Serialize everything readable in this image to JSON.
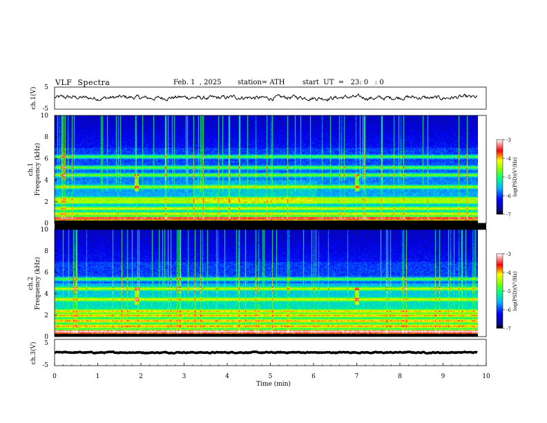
{
  "header": {
    "title": "VLF  Spectra",
    "date": "Feb. 1  , 2025",
    "station": "station= ATH",
    "start": "start  UT  =   23: 0   : 0"
  },
  "chart_data": [
    {
      "type": "line",
      "panel": "ch1-amplitude",
      "ylabel": "ch.1(V)",
      "ylim": [
        -5,
        5
      ],
      "yticks": [
        "5",
        "-5"
      ],
      "xlim": [
        0,
        9.8
      ],
      "mean": 0.2,
      "noise_amplitude": 0.7
    },
    {
      "type": "heatmap",
      "panel": "ch1-spectrogram",
      "channel_label": "ch.1",
      "ylabel": "Frequency  (kHz)",
      "ylim": [
        0,
        10
      ],
      "yticks": [
        "0",
        "2",
        "4",
        "6",
        "8",
        "10"
      ],
      "xlim": [
        0,
        9.8
      ],
      "bands_khz": [
        0.5,
        0.9,
        1.4,
        2.0,
        2.3,
        3.4,
        4.5,
        5.2,
        6.2
      ],
      "bursts_min": [
        1.9,
        7.0
      ],
      "colorbar": {
        "label": "log(PSD)(V²/Hz)",
        "range": [
          -7,
          -3
        ],
        "ticks": [
          "-3",
          "-4",
          "-5",
          "-6",
          "-7"
        ]
      }
    },
    {
      "type": "heatmap",
      "panel": "ch2-spectrogram",
      "channel_label": "ch.2",
      "ylabel": "Frequency  (kHz)",
      "ylim": [
        0,
        10
      ],
      "yticks": [
        "0",
        "2",
        "4",
        "6",
        "8",
        "10"
      ],
      "xlim": [
        0,
        9.8
      ],
      "bands_khz": [
        0.5,
        1.0,
        1.5,
        2.0,
        2.4,
        3.5,
        4.5,
        5.4
      ],
      "bursts_min": [
        1.9,
        7.0
      ],
      "colorbar": {
        "label": "log(PSD)(V²/Hz)",
        "range": [
          -7,
          -3
        ],
        "ticks": [
          "-3",
          "-4",
          "-5",
          "-6",
          "-7"
        ]
      }
    },
    {
      "type": "line",
      "panel": "ch3-amplitude",
      "ylabel": "ch.3(V)",
      "ylim": [
        -5,
        5
      ],
      "yticks": [
        "5",
        "-5"
      ],
      "xlim": [
        0,
        9.8
      ],
      "mean": 0.0,
      "noise_amplitude": 0.15
    }
  ],
  "x_axis": {
    "label": "Time  (min)",
    "range": [
      0,
      10
    ],
    "ticks": [
      "0",
      "1",
      "2",
      "3",
      "4",
      "5",
      "6",
      "7",
      "8",
      "9",
      "10"
    ]
  }
}
